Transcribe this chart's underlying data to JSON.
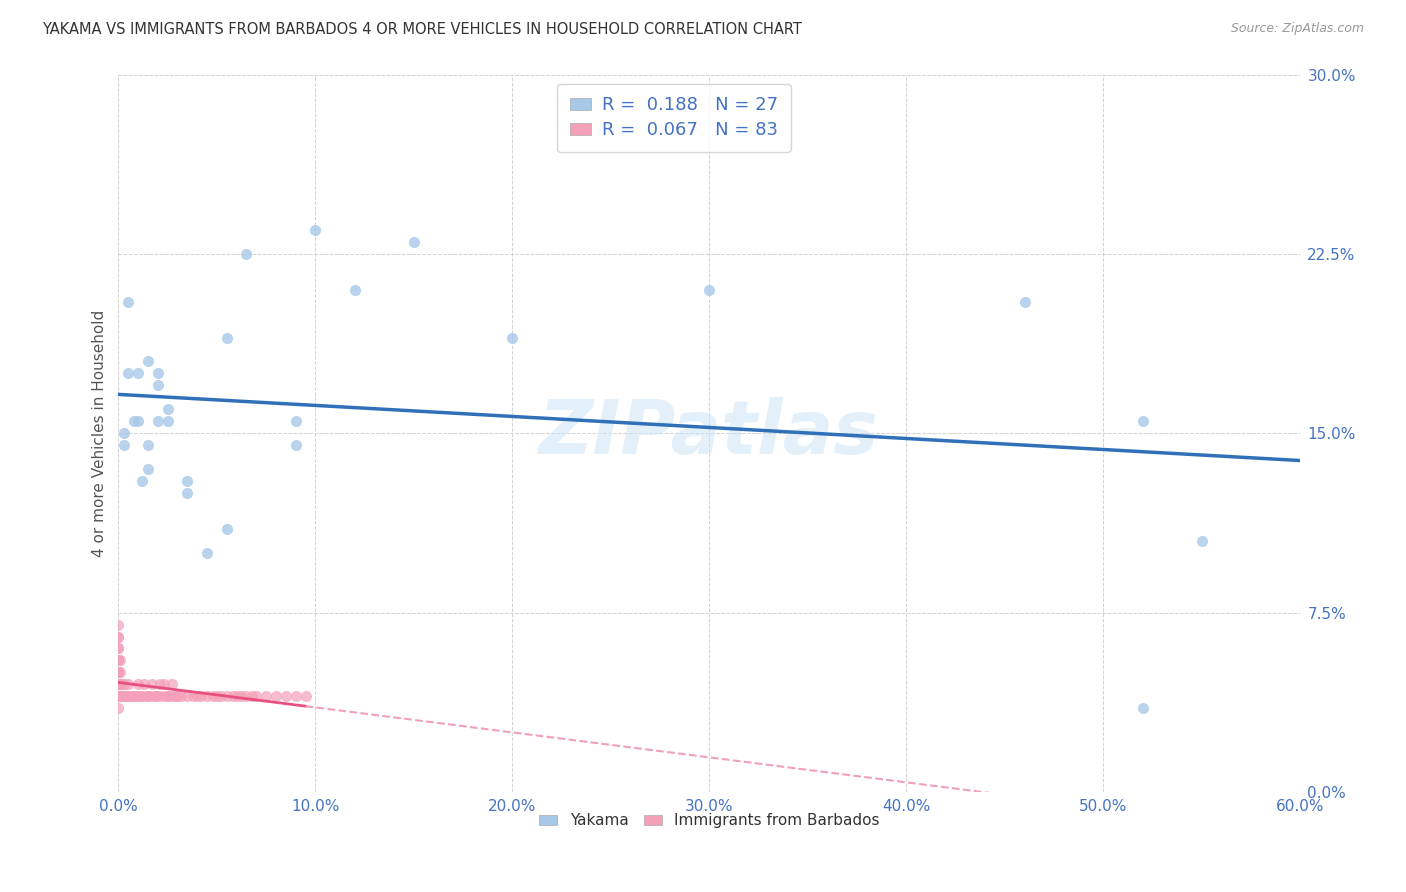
{
  "title": "YAKAMA VS IMMIGRANTS FROM BARBADOS 4 OR MORE VEHICLES IN HOUSEHOLD CORRELATION CHART",
  "source": "Source: ZipAtlas.com",
  "ylabel": "4 or more Vehicles in Household",
  "xlim": [
    0.0,
    60.0
  ],
  "ylim": [
    0.0,
    30.0
  ],
  "xticks": [
    0.0,
    10.0,
    20.0,
    30.0,
    40.0,
    50.0,
    60.0
  ],
  "yticks": [
    0.0,
    7.5,
    15.0,
    22.5,
    30.0
  ],
  "xtick_labels": [
    "0.0%",
    "10.0%",
    "20.0%",
    "30.0%",
    "40.0%",
    "50.0%",
    "60.0%"
  ],
  "ytick_labels": [
    "0.0%",
    "7.5%",
    "15.0%",
    "22.5%",
    "30.0%"
  ],
  "blue_scatter_color": "#a8c8e8",
  "pink_scatter_color": "#f4a0b8",
  "blue_line_color": "#3070b8",
  "pink_line_color": "#e85080",
  "pink_dash_color": "#f0a0b8",
  "bottom_legend1": "Yakama",
  "bottom_legend2": "Immigrants from Barbados",
  "watermark": "ZIPatlas",
  "yakama_x": [
    0.3,
    0.5,
    0.8,
    1.0,
    1.2,
    1.5,
    1.5,
    2.0,
    2.0,
    2.5,
    3.5,
    4.5,
    5.5,
    6.5,
    9.0,
    10.0,
    12.0,
    15.0,
    20.0,
    30.0,
    46.0,
    52.0,
    55.0
  ],
  "yakama_y": [
    14.5,
    20.5,
    15.5,
    17.5,
    13.0,
    18.0,
    14.5,
    15.5,
    17.5,
    16.0,
    13.0,
    10.0,
    19.0,
    22.5,
    15.5,
    23.5,
    21.0,
    23.0,
    19.0,
    21.0,
    20.5,
    15.5,
    10.5
  ],
  "yakama_x2": [
    0.3,
    0.5,
    1.0,
    1.5,
    2.0,
    2.5,
    3.5,
    5.5,
    9.0,
    52.0
  ],
  "yakama_y2": [
    15.0,
    17.5,
    15.5,
    13.5,
    17.0,
    15.5,
    12.5,
    11.0,
    14.5,
    3.5
  ],
  "barbados_x": [
    0.0,
    0.0,
    0.0,
    0.0,
    0.0,
    0.0,
    0.0,
    0.0,
    0.0,
    0.0,
    0.0,
    0.0,
    0.0,
    0.0,
    0.0,
    0.0,
    0.0,
    0.0,
    0.0,
    0.0,
    0.0,
    0.0,
    0.0,
    0.0,
    0.1,
    0.1,
    0.1,
    0.1,
    0.1,
    0.2,
    0.2,
    0.3,
    0.3,
    0.4,
    0.5,
    0.5,
    0.6,
    0.7,
    0.8,
    0.9,
    1.0,
    1.0,
    1.1,
    1.2,
    1.3,
    1.4,
    1.5,
    1.6,
    1.7,
    1.8,
    1.9,
    2.0,
    2.1,
    2.2,
    2.3,
    2.4,
    2.5,
    2.6,
    2.7,
    2.8,
    2.9,
    3.0,
    3.2,
    3.5,
    3.8,
    4.0,
    4.2,
    4.5,
    4.8,
    5.0,
    5.2,
    5.5,
    5.8,
    6.0,
    6.2,
    6.5,
    6.8,
    7.0,
    7.5,
    8.0,
    8.5,
    9.0,
    9.5
  ],
  "barbados_y": [
    4.0,
    4.0,
    4.5,
    4.5,
    5.0,
    5.0,
    5.5,
    5.5,
    6.0,
    6.0,
    6.5,
    6.5,
    7.0,
    3.5,
    4.0,
    4.0,
    4.5,
    5.0,
    5.5,
    4.0,
    4.5,
    5.0,
    4.0,
    4.5,
    4.0,
    4.5,
    5.5,
    5.0,
    4.0,
    4.0,
    4.5,
    4.0,
    4.5,
    4.0,
    4.0,
    4.5,
    4.0,
    4.0,
    4.0,
    4.0,
    4.0,
    4.5,
    4.0,
    4.0,
    4.5,
    4.0,
    4.0,
    4.0,
    4.5,
    4.0,
    4.0,
    4.0,
    4.5,
    4.0,
    4.5,
    4.0,
    4.0,
    4.0,
    4.5,
    4.0,
    4.0,
    4.0,
    4.0,
    4.0,
    4.0,
    4.0,
    4.0,
    4.0,
    4.0,
    4.0,
    4.0,
    4.0,
    4.0,
    4.0,
    4.0,
    4.0,
    4.0,
    4.0,
    4.0,
    4.0,
    4.0,
    4.0,
    4.0
  ],
  "background_color": "#ffffff",
  "grid_color": "#cccccc"
}
